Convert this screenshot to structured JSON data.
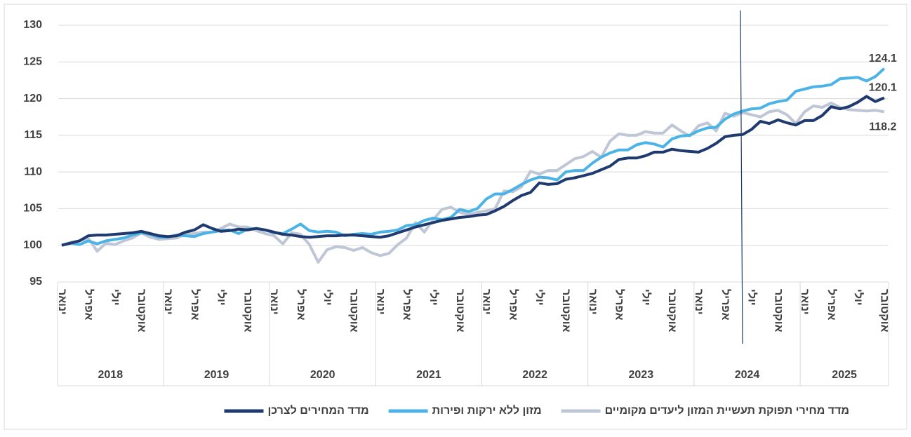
{
  "chart_data": {
    "type": "line",
    "categories": [
      "ינואר",
      null,
      null,
      "אפריל",
      null,
      null,
      "יולי",
      null,
      null,
      "אוקטובר",
      null,
      null,
      "ינואר",
      null,
      null,
      "אפריל",
      null,
      null,
      "יולי",
      null,
      null,
      "אוקטובר",
      null,
      null,
      "ינואר",
      null,
      null,
      "אפריל",
      null,
      null,
      "יולי",
      null,
      null,
      "אוקטובר",
      null,
      null,
      "ינואר",
      null,
      null,
      "אפריל",
      null,
      null,
      "יולי",
      null,
      null,
      "אוקטובר",
      null,
      null,
      "ינואר",
      null,
      null,
      "אפריל",
      null,
      null,
      "יולי",
      null,
      null,
      "אוקטובר",
      null,
      null,
      "ינואר",
      null,
      null,
      "אפריל",
      null,
      null,
      "יולי",
      null,
      null,
      "אוקטובר",
      null,
      null,
      "ינואר",
      null,
      null,
      "אפריל",
      null,
      null,
      "יולי",
      null,
      null,
      "אוקטובר",
      null,
      null,
      "ינואר",
      null,
      null,
      "אפריל",
      null,
      null,
      "יולי",
      null,
      null,
      "אוקטובר"
    ],
    "years": [
      "2018",
      "2019",
      "2020",
      "2021",
      "2022",
      "2023",
      "2024",
      "2025"
    ],
    "series": [
      {
        "name": "מדד המחירים לצרכן",
        "color": "#1f3a6e",
        "values": [
          100,
          100.3,
          100.6,
          101.3,
          101.4,
          101.4,
          101.5,
          101.6,
          101.7,
          101.9,
          101.6,
          101.3,
          101.2,
          101.3,
          101.8,
          102.1,
          102.8,
          102.3,
          101.9,
          102.0,
          102.2,
          102.1,
          102.3,
          102.1,
          101.8,
          101.5,
          101.4,
          101.2,
          101.1,
          101.2,
          101.3,
          101.3,
          101.4,
          101.4,
          101.3,
          101.2,
          101.1,
          101.3,
          101.7,
          102.1,
          102.5,
          102.8,
          103.1,
          103.4,
          103.6,
          103.8,
          103.9,
          104.1,
          104.2,
          104.7,
          105.3,
          106.1,
          106.8,
          107.2,
          108.5,
          108.3,
          108.4,
          109.0,
          109.2,
          109.5,
          109.8,
          110.3,
          110.8,
          111.7,
          111.9,
          111.9,
          112.2,
          112.7,
          112.7,
          113.1,
          112.9,
          112.8,
          112.7,
          113.2,
          113.9,
          114.8,
          115.0,
          115.1,
          115.8,
          116.9,
          116.6,
          117.1,
          116.7,
          116.4,
          117.0,
          117.0,
          117.7,
          118.9,
          118.6,
          118.9,
          119.5,
          120.3,
          119.6,
          120.1
        ]
      },
      {
        "name": "מזון ללא ירקות ופירות",
        "color": "#4bb3e6",
        "values": [
          100,
          100.3,
          100.1,
          100.6,
          100.2,
          100.6,
          100.8,
          101.0,
          101.4,
          101.7,
          101.5,
          101.1,
          101.1,
          101.4,
          101.3,
          101.2,
          101.6,
          101.8,
          102.0,
          102.1,
          101.6,
          102.2,
          102.3,
          102.1,
          101.7,
          101.6,
          102.2,
          102.9,
          102.0,
          101.8,
          101.9,
          101.8,
          101.3,
          101.5,
          101.6,
          101.5,
          101.8,
          101.9,
          102.1,
          102.7,
          102.8,
          103.4,
          103.7,
          103.5,
          103.8,
          104.9,
          104.6,
          105.0,
          106.3,
          107.0,
          107.0,
          107.6,
          108.3,
          108.9,
          109.3,
          109.2,
          108.9,
          110.0,
          110.2,
          110.2,
          111.2,
          112.0,
          112.6,
          113.0,
          113.0,
          113.7,
          114.0,
          113.8,
          113.4,
          114.5,
          114.9,
          115.0,
          115.6,
          116.0,
          116.1,
          117.2,
          117.9,
          118.3,
          118.6,
          118.7,
          119.3,
          119.6,
          119.8,
          121.0,
          121.3,
          121.6,
          121.7,
          121.9,
          122.7,
          122.8,
          122.9,
          122.4,
          123.0,
          124.1
        ]
      },
      {
        "name": "מדד מחירי תפוקת תעשיית המזון ליעדים מקומיים",
        "color": "#bfc7d6",
        "values": [
          100,
          100.4,
          100.6,
          101.0,
          99.2,
          100.3,
          100.1,
          100.6,
          101.0,
          101.7,
          101.1,
          100.8,
          100.9,
          101.0,
          101.5,
          101.6,
          101.8,
          101.8,
          102.3,
          102.9,
          102.5,
          102.5,
          102.0,
          101.6,
          101.3,
          100.2,
          101.7,
          101.5,
          100.1,
          97.7,
          99.4,
          99.8,
          99.7,
          99.3,
          99.7,
          99.0,
          98.6,
          98.9,
          100.1,
          101.0,
          103.1,
          101.8,
          103.5,
          104.9,
          105.2,
          104.5,
          104.2,
          104.5,
          104.7,
          105.0,
          107.4,
          107.3,
          108.0,
          110.1,
          109.7,
          110.2,
          110.2,
          111.0,
          111.8,
          112.1,
          112.8,
          112.0,
          114.2,
          115.2,
          115.0,
          115.0,
          115.5,
          115.3,
          115.3,
          116.4,
          115.6,
          114.9,
          116.3,
          116.7,
          115.6,
          118.0,
          117.6,
          118.1,
          117.8,
          117.5,
          118.2,
          118.4,
          117.8,
          116.6,
          118.2,
          119.0,
          118.8,
          119.4,
          118.8,
          118.5,
          118.4,
          118.3,
          118.4,
          118.2
        ]
      }
    ],
    "ylim": [
      95,
      130
    ],
    "yticks": [
      95,
      100,
      105,
      110,
      115,
      120,
      125,
      130
    ],
    "grid": true,
    "legend": "bottom"
  }
}
